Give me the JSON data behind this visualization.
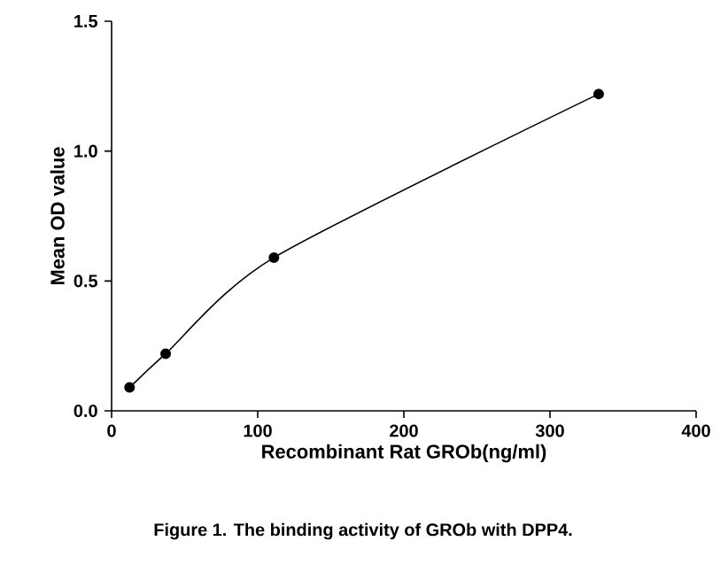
{
  "chart_data": {
    "type": "line",
    "xlabel": "Recombinant Rat GROb(ng/ml)",
    "ylabel": "Mean OD value",
    "annotations": [
      "Figure 1. The binding activity of GROb with DPP4."
    ],
    "x": [
      12.3,
      37,
      111.1,
      333.3
    ],
    "series": [
      {
        "color": "#000000",
        "values": [
          0.09,
          0.22,
          0.59,
          1.22
        ]
      }
    ],
    "marker": "circle",
    "line_style": "solid",
    "grid": false,
    "xlim": [
      0,
      400
    ],
    "xticks": [
      0,
      100,
      200,
      300,
      400
    ],
    "ylim": [
      0,
      1.5
    ],
    "yticks": [
      {
        "value": 0,
        "label": "0.0"
      },
      {
        "value": 0.5,
        "label": "0.5"
      },
      {
        "value": 1,
        "label": "1.0"
      },
      {
        "value": 1.5,
        "label": "1.5"
      }
    ]
  }
}
